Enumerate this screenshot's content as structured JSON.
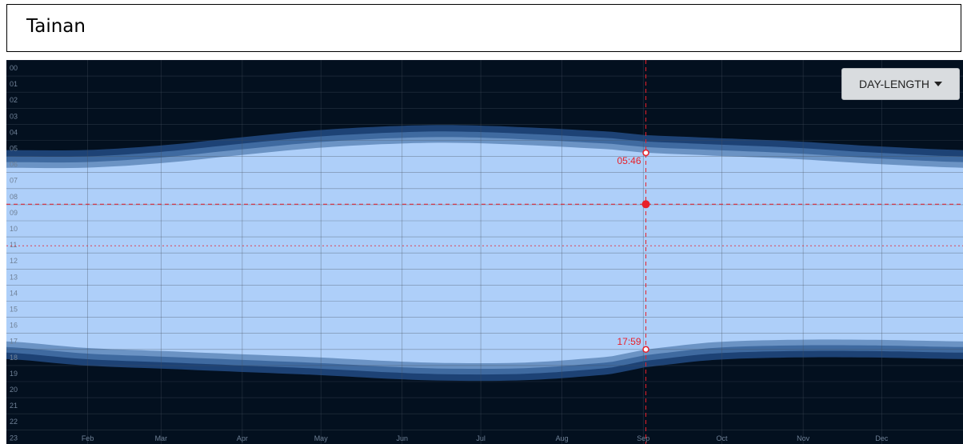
{
  "title": "Tainan",
  "mode_button": {
    "label": "DAY-LENGTH",
    "caret_icon": "caret-down-icon"
  },
  "colors": {
    "background": "#03101f",
    "day": "#aecff9",
    "twilight_civil": "#6b93c4",
    "twilight_nautical": "#3f6aa0",
    "twilight_astronomical": "#1d4275",
    "cursor": "#e8202a",
    "grid": "#45505e",
    "hour_label": "#6f8197"
  },
  "chart_data": {
    "type": "area",
    "title": "",
    "xlabel": "",
    "ylabel": "",
    "y_ticks": [
      "00",
      "01",
      "02",
      "03",
      "04",
      "05",
      "06",
      "07",
      "08",
      "09",
      "10",
      "11",
      "12",
      "13",
      "14",
      "15",
      "16",
      "17",
      "18",
      "19",
      "20",
      "21",
      "22",
      "23"
    ],
    "x_ticks": [
      "Feb",
      "Mar",
      "Apr",
      "May",
      "Jun",
      "Jul",
      "Aug",
      "Sep",
      "Oct",
      "Nov",
      "Dec"
    ],
    "xlim_days": [
      0,
      365
    ],
    "ylim_hours": [
      0,
      24
    ],
    "sunrise_hours": {
      "days": [
        0,
        30,
        60,
        90,
        120,
        150,
        172,
        200,
        230,
        244,
        270,
        300,
        330,
        365
      ],
      "values": [
        6.7,
        6.7,
        6.4,
        5.9,
        5.45,
        5.2,
        5.15,
        5.3,
        5.55,
        5.77,
        5.95,
        6.15,
        6.45,
        6.7
      ]
    },
    "sunset_hours": {
      "days": [
        0,
        30,
        60,
        90,
        120,
        150,
        172,
        200,
        230,
        244,
        270,
        300,
        330,
        365
      ],
      "values": [
        17.5,
        17.9,
        18.1,
        18.3,
        18.5,
        18.75,
        18.85,
        18.8,
        18.45,
        18.0,
        17.55,
        17.4,
        17.4,
        17.5
      ]
    },
    "twilight_offsets_hours": {
      "civil": 0.35,
      "nautical": 0.7,
      "astronomical": 1.1
    },
    "cursor": {
      "day": 244,
      "hour": 8.97,
      "sunrise_label": "05:46",
      "sunset_label": "17:59"
    },
    "noon_line_hour": 12,
    "grid": true
  }
}
